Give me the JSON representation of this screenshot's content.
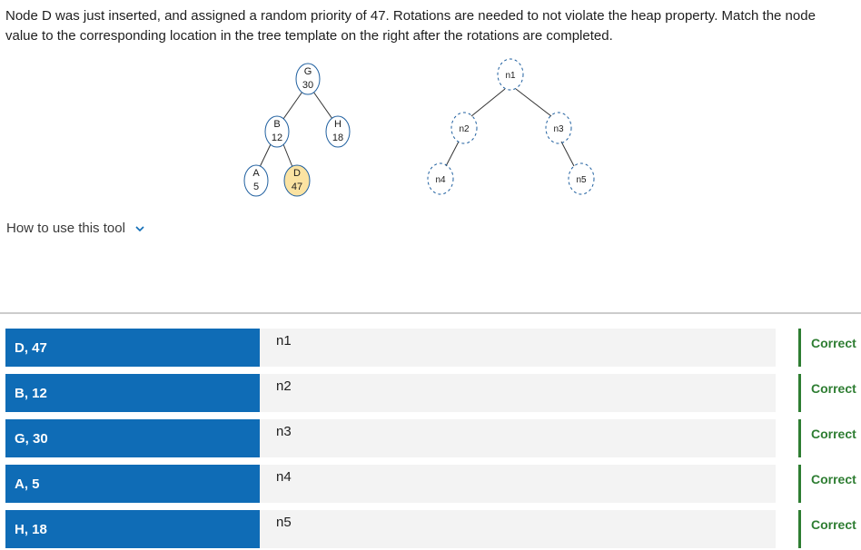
{
  "question": "Node D was just inserted, and assigned a random priority of 47. Rotations are needed to not violate the heap property. Match the node value to the corresponding location in the tree template on the right after the rotations are completed.",
  "tree": {
    "nodes": {
      "g": {
        "letter": "G",
        "priority": "30"
      },
      "b": {
        "letter": "B",
        "priority": "12"
      },
      "h": {
        "letter": "H",
        "priority": "18"
      },
      "a": {
        "letter": "A",
        "priority": "5"
      },
      "d": {
        "letter": "D",
        "priority": "47",
        "highlight": "#fbe3a2"
      }
    }
  },
  "template": {
    "n1": "n1",
    "n2": "n2",
    "n3": "n3",
    "n4": "n4",
    "n5": "n5"
  },
  "how_to": {
    "label": "How to use this tool",
    "icon": "chevron-down-icon"
  },
  "rows": [
    {
      "item": "D, 47",
      "target": "n1",
      "status": "Correct"
    },
    {
      "item": "B, 12",
      "target": "n2",
      "status": "Correct"
    },
    {
      "item": "G, 30",
      "target": "n3",
      "status": "Correct"
    },
    {
      "item": "A, 5",
      "target": "n4",
      "status": "Correct"
    },
    {
      "item": "H, 18",
      "target": "n5",
      "status": "Correct"
    }
  ],
  "colors": {
    "item_bg": "#0f6cb6",
    "target_bg": "#f3f3f3",
    "correct": "#2e7d32",
    "node_stroke": "#1f5f9f"
  }
}
